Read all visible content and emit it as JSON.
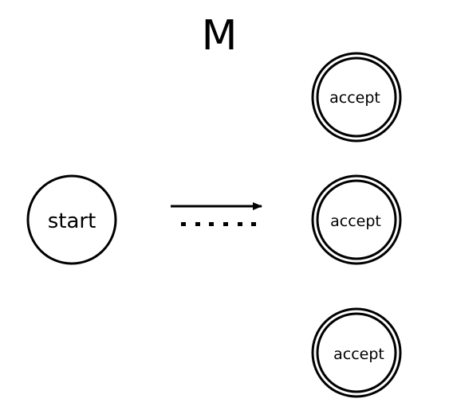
{
  "diagram": {
    "title": "M",
    "start_state": {
      "label": "start"
    },
    "accept_states": [
      {
        "label": "accept"
      },
      {
        "label": "accept"
      },
      {
        "label": "accept"
      }
    ],
    "transition": {
      "style": "arrow followed by dotted continuation"
    },
    "colors": {
      "stroke": "#000000",
      "background": "#ffffff"
    }
  }
}
